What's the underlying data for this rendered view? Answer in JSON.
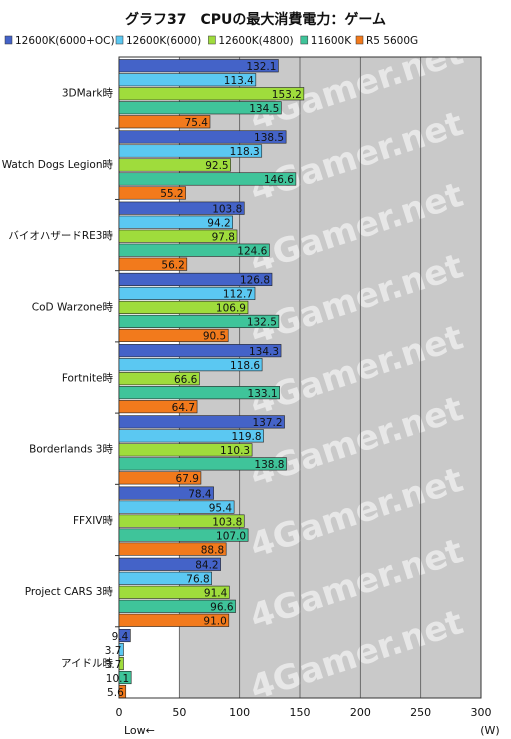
{
  "chart_data": {
    "type": "bar",
    "orientation": "horizontal",
    "title": "グラフ37　CPUの最大消費電力：ゲーム",
    "xlabel": "",
    "unit": "(W)",
    "low_label": "Low←",
    "watermark": "4Gamer.net",
    "xlim": [
      0,
      300
    ],
    "xticks": [
      0,
      50,
      100,
      150,
      200,
      250,
      300
    ],
    "grid": true,
    "legend_position": "top",
    "categories": [
      "3DMark時",
      "Watch Dogs Legion時",
      "バイオハザードRE3時",
      "CoD Warzone時",
      "Fortnite時",
      "Borderlands 3時",
      "FFXIV時",
      "Project CARS 3時",
      "アイドル時"
    ],
    "series": [
      {
        "name": "12600K(6000+OC)",
        "color": "#4463c8",
        "values": [
          132.1,
          138.5,
          103.8,
          126.8,
          134.3,
          137.2,
          78.4,
          84.2,
          9.4
        ]
      },
      {
        "name": "12600K(6000)",
        "color": "#5bc8f2",
        "values": [
          113.4,
          118.3,
          94.2,
          112.7,
          118.6,
          119.8,
          95.4,
          76.8,
          3.7
        ]
      },
      {
        "name": "12600K(4800)",
        "color": "#9fdc3c",
        "values": [
          153.2,
          92.5,
          97.8,
          106.9,
          66.6,
          110.3,
          103.8,
          91.4,
          3.7
        ]
      },
      {
        "name": "11600K",
        "color": "#3fc49a",
        "values": [
          134.5,
          146.6,
          124.6,
          132.5,
          133.1,
          138.8,
          107.0,
          96.6,
          10.1
        ]
      },
      {
        "name": "R5 5600G",
        "color": "#f27a1c",
        "values": [
          75.4,
          55.2,
          56.2,
          90.5,
          64.7,
          67.9,
          88.8,
          91.0,
          5.6
        ]
      }
    ]
  }
}
